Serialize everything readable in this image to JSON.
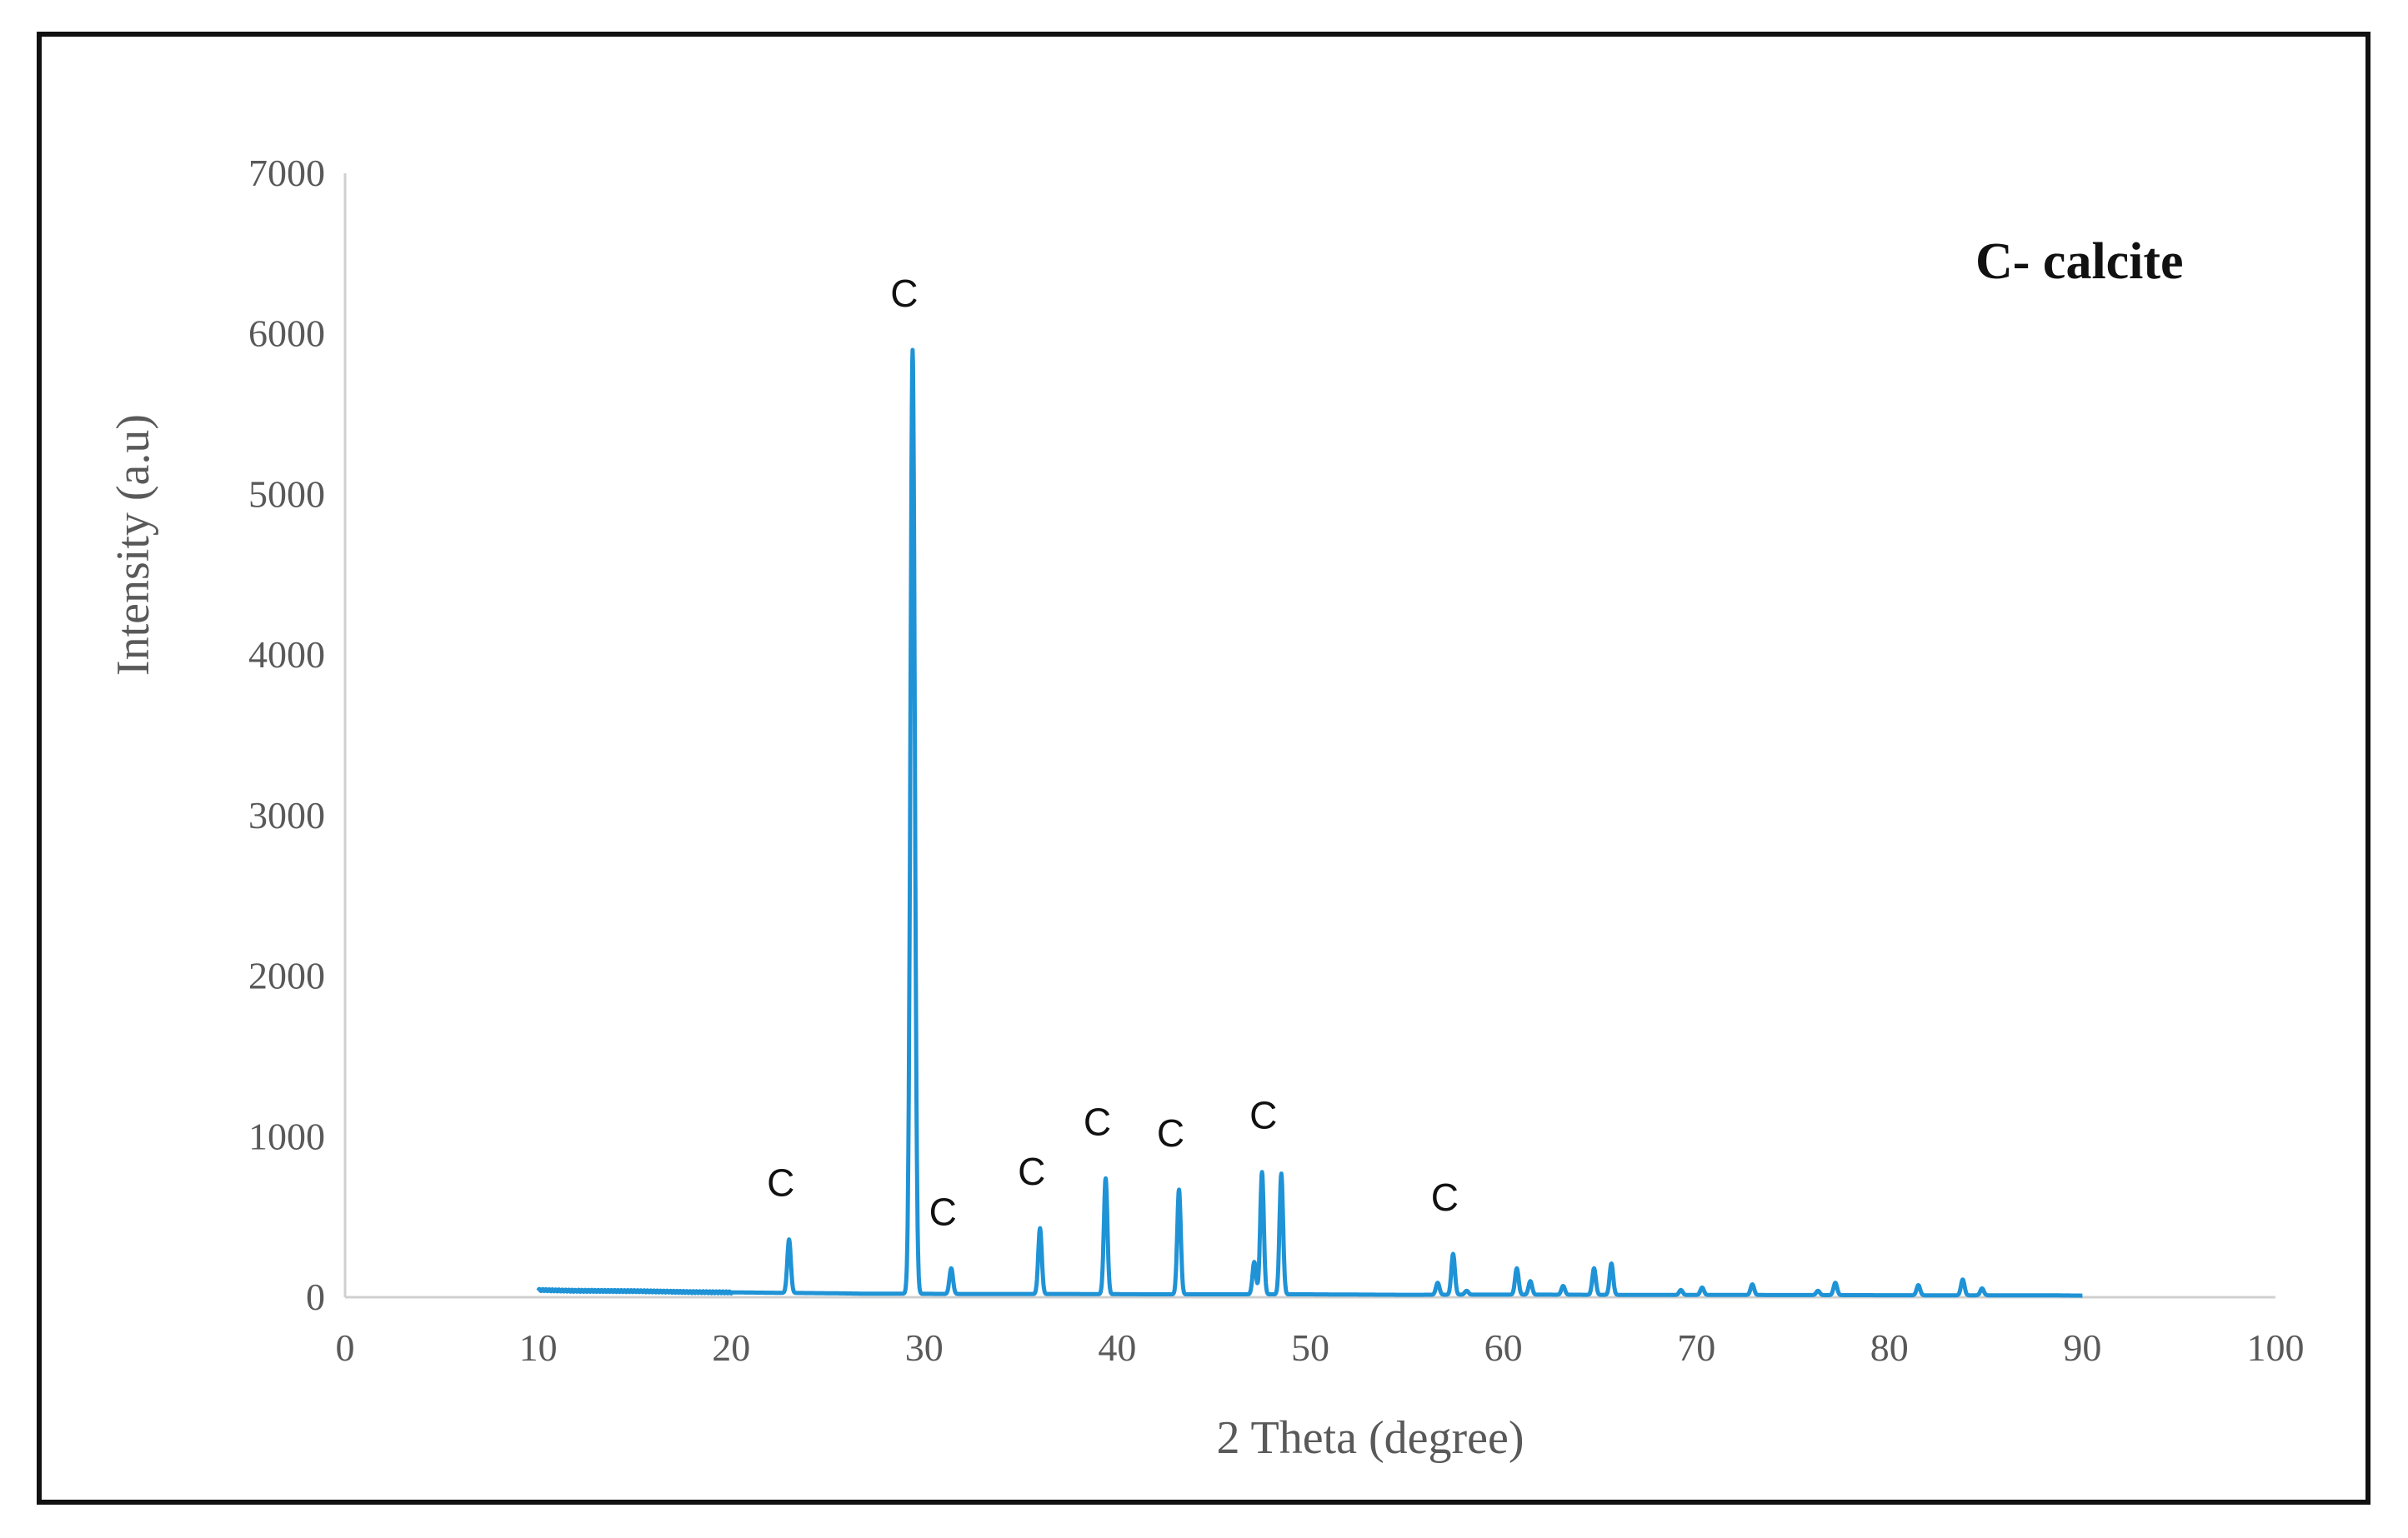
{
  "chart_data": {
    "type": "line",
    "xlabel": "2 Theta (degree)",
    "ylabel": "Intensity (a.u)",
    "annotation": "C- calcite",
    "xlim": [
      0,
      100
    ],
    "ylim": [
      0,
      7000
    ],
    "x_ticks": [
      0,
      10,
      20,
      30,
      40,
      50,
      60,
      70,
      80,
      90,
      100
    ],
    "y_ticks": [
      0,
      1000,
      2000,
      3000,
      4000,
      5000,
      6000,
      7000
    ],
    "grid": false,
    "line_color": "#1f93d6",
    "baseline": {
      "x": [
        10,
        12,
        15,
        18,
        20,
        22,
        25,
        27,
        28,
        33,
        35,
        38,
        42,
        45,
        50,
        53,
        55,
        58,
        62,
        68,
        72,
        78,
        82,
        86,
        88,
        90
      ],
      "y": [
        45,
        40,
        38,
        32,
        30,
        28,
        25,
        22,
        22,
        20,
        20,
        20,
        18,
        18,
        18,
        16,
        15,
        16,
        16,
        14,
        14,
        13,
        12,
        12,
        12,
        10
      ]
    },
    "peaks": [
      {
        "x": 23.0,
        "y": 360
      },
      {
        "x": 29.4,
        "y": 5900
      },
      {
        "x": 31.4,
        "y": 180
      },
      {
        "x": 36.0,
        "y": 430
      },
      {
        "x": 39.4,
        "y": 740
      },
      {
        "x": 43.2,
        "y": 670
      },
      {
        "x": 47.1,
        "y": 220
      },
      {
        "x": 47.5,
        "y": 780
      },
      {
        "x": 48.5,
        "y": 770
      },
      {
        "x": 56.6,
        "y": 90
      },
      {
        "x": 57.4,
        "y": 270
      },
      {
        "x": 58.1,
        "y": 40
      },
      {
        "x": 60.7,
        "y": 180
      },
      {
        "x": 61.4,
        "y": 100
      },
      {
        "x": 63.1,
        "y": 70
      },
      {
        "x": 64.7,
        "y": 180
      },
      {
        "x": 65.6,
        "y": 210
      },
      {
        "x": 69.2,
        "y": 45
      },
      {
        "x": 70.3,
        "y": 60
      },
      {
        "x": 72.9,
        "y": 80
      },
      {
        "x": 76.3,
        "y": 40
      },
      {
        "x": 77.2,
        "y": 90
      },
      {
        "x": 81.5,
        "y": 75
      },
      {
        "x": 83.8,
        "y": 110
      },
      {
        "x": 84.8,
        "y": 55
      }
    ],
    "peak_labels": [
      {
        "x": 23.0,
        "y": 360,
        "text": "C"
      },
      {
        "x": 29.4,
        "y": 5900,
        "text": "C"
      },
      {
        "x": 31.4,
        "y": 180,
        "text": "C"
      },
      {
        "x": 36.0,
        "y": 430,
        "text": "C"
      },
      {
        "x": 39.4,
        "y": 740,
        "text": "C"
      },
      {
        "x": 43.2,
        "y": 670,
        "text": "C"
      },
      {
        "x": 48.0,
        "y": 780,
        "text": "C"
      },
      {
        "x": 57.4,
        "y": 270,
        "text": "C"
      }
    ]
  }
}
